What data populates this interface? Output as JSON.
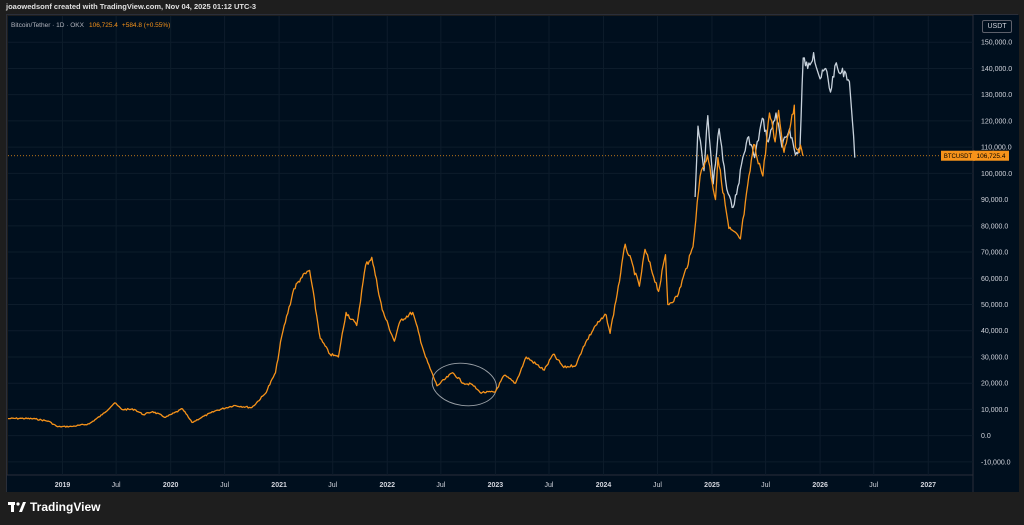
{
  "header": {
    "caption": "joaowedsonf created with TradingView.com, Nov 04, 2025 01:12 UTC-3"
  },
  "legend": {
    "symbol": "Bitcoin/Tether · 1D · OKX",
    "price": "106,725.4",
    "change": "+584.8 (+0.55%)"
  },
  "currency_badge": "USDT",
  "brand": {
    "name": "TradingView"
  },
  "colors": {
    "background": "#000f1e",
    "price_line": "#f7931a",
    "projection_line": "#c8d2dc",
    "grid": "#0d1c2b",
    "badge_bg": "#f7931a",
    "ellipse": "#9aa0a6"
  },
  "chart_data": {
    "type": "line",
    "title": "Bitcoin/Tether · 1D · OKX",
    "ylabel": "USDT",
    "y_scale": "linear",
    "ylim": [
      -15000,
      160000
    ],
    "xlim": [
      "2018-07-01",
      "2027-06-01"
    ],
    "x_tick_labels": [
      {
        "date": "2019-01-01",
        "label": "2019"
      },
      {
        "date": "2019-07-01",
        "label": "Jul"
      },
      {
        "date": "2020-01-01",
        "label": "2020"
      },
      {
        "date": "2020-07-01",
        "label": "Jul"
      },
      {
        "date": "2021-01-01",
        "label": "2021"
      },
      {
        "date": "2021-07-01",
        "label": "Jul"
      },
      {
        "date": "2022-01-01",
        "label": "2022"
      },
      {
        "date": "2022-07-01",
        "label": "Jul"
      },
      {
        "date": "2023-01-01",
        "label": "2023"
      },
      {
        "date": "2023-07-01",
        "label": "Jul"
      },
      {
        "date": "2024-01-01",
        "label": "2024"
      },
      {
        "date": "2024-07-01",
        "label": "Jul"
      },
      {
        "date": "2025-01-01",
        "label": "2025"
      },
      {
        "date": "2025-07-01",
        "label": "Jul"
      },
      {
        "date": "2026-01-01",
        "label": "2026"
      },
      {
        "date": "2026-07-01",
        "label": "Jul"
      },
      {
        "date": "2027-01-01",
        "label": "2027"
      }
    ],
    "y_ticks": [
      {
        "value": 150000,
        "label": "150,000.0"
      },
      {
        "value": 140000,
        "label": "140,000.0"
      },
      {
        "value": 130000,
        "label": "130,000.0"
      },
      {
        "value": 120000,
        "label": "120,000.0"
      },
      {
        "value": 110000,
        "label": "110,000.0"
      },
      {
        "value": 100000,
        "label": "100,000.0"
      },
      {
        "value": 90000,
        "label": "90,000.0"
      },
      {
        "value": 80000,
        "label": "80,000.0"
      },
      {
        "value": 70000,
        "label": "70,000.0"
      },
      {
        "value": 60000,
        "label": "60,000.0"
      },
      {
        "value": 50000,
        "label": "50,000.0"
      },
      {
        "value": 40000,
        "label": "40,000.0"
      },
      {
        "value": 30000,
        "label": "30,000.0"
      },
      {
        "value": 20000,
        "label": "20,000.0"
      },
      {
        "value": 10000,
        "label": "10,000.0"
      },
      {
        "value": 0,
        "label": "0.0"
      },
      {
        "value": -10000,
        "label": "-10,000.0"
      }
    ],
    "current_price": {
      "value": 106725.4,
      "label": "BTCUSDT",
      "price_label": "106,725.4"
    },
    "series": [
      {
        "name": "Bitcoin/Tether",
        "color": "#f7931a",
        "points": [
          [
            "2018-07-01",
            6500
          ],
          [
            "2018-08-15",
            6600
          ],
          [
            "2018-10-01",
            6400
          ],
          [
            "2018-11-15",
            5500
          ],
          [
            "2018-12-15",
            3400
          ],
          [
            "2019-02-01",
            3500
          ],
          [
            "2019-04-01",
            4500
          ],
          [
            "2019-05-15",
            8000
          ],
          [
            "2019-06-26",
            12500
          ],
          [
            "2019-07-20",
            10000
          ],
          [
            "2019-09-01",
            10000
          ],
          [
            "2019-10-01",
            8000
          ],
          [
            "2019-11-01",
            9200
          ],
          [
            "2019-12-15",
            7000
          ],
          [
            "2020-02-10",
            10200
          ],
          [
            "2020-03-13",
            5000
          ],
          [
            "2020-04-15",
            7000
          ],
          [
            "2020-06-01",
            9500
          ],
          [
            "2020-08-01",
            11500
          ],
          [
            "2020-10-01",
            10700
          ],
          [
            "2020-11-15",
            16000
          ],
          [
            "2020-12-20",
            24000
          ],
          [
            "2021-01-10",
            38000
          ],
          [
            "2021-02-20",
            56000
          ],
          [
            "2021-03-15",
            60000
          ],
          [
            "2021-04-14",
            63000
          ],
          [
            "2021-05-20",
            37000
          ],
          [
            "2021-06-22",
            31000
          ],
          [
            "2021-07-20",
            30000
          ],
          [
            "2021-08-15",
            47000
          ],
          [
            "2021-09-20",
            42000
          ],
          [
            "2021-10-20",
            65000
          ],
          [
            "2021-11-10",
            68000
          ],
          [
            "2021-12-15",
            48000
          ],
          [
            "2022-01-25",
            36000
          ],
          [
            "2022-02-15",
            44000
          ],
          [
            "2022-03-28",
            47000
          ],
          [
            "2022-05-10",
            30000
          ],
          [
            "2022-06-18",
            19000
          ],
          [
            "2022-08-10",
            24000
          ],
          [
            "2022-09-15",
            20000
          ],
          [
            "2022-10-15",
            19500
          ],
          [
            "2022-11-10",
            16500
          ],
          [
            "2022-12-31",
            16600
          ],
          [
            "2023-01-31",
            23000
          ],
          [
            "2023-03-10",
            20000
          ],
          [
            "2023-04-15",
            30000
          ],
          [
            "2023-06-15",
            25000
          ],
          [
            "2023-07-15",
            31000
          ],
          [
            "2023-08-20",
            26000
          ],
          [
            "2023-10-01",
            27000
          ],
          [
            "2023-10-25",
            34000
          ],
          [
            "2023-12-05",
            42000
          ],
          [
            "2024-01-10",
            46000
          ],
          [
            "2024-01-23",
            39000
          ],
          [
            "2024-02-28",
            62000
          ],
          [
            "2024-03-14",
            73000
          ],
          [
            "2024-05-01",
            57000
          ],
          [
            "2024-05-20",
            71000
          ],
          [
            "2024-07-05",
            55000
          ],
          [
            "2024-07-28",
            69000
          ],
          [
            "2024-08-05",
            50000
          ],
          [
            "2024-09-06",
            53000
          ],
          [
            "2024-10-29",
            72000
          ],
          [
            "2024-11-12",
            89000
          ],
          [
            "2024-11-22",
            99000
          ],
          [
            "2024-12-17",
            107000
          ],
          [
            "2025-01-13",
            90000
          ],
          [
            "2025-01-21",
            106000
          ],
          [
            "2025-02-27",
            79000
          ],
          [
            "2025-04-07",
            75000
          ],
          [
            "2025-05-22",
            111000
          ],
          [
            "2025-06-22",
            99000
          ],
          [
            "2025-07-14",
            123000
          ],
          [
            "2025-08-02",
            112000
          ],
          [
            "2025-08-14",
            124000
          ],
          [
            "2025-09-01",
            108000
          ],
          [
            "2025-10-06",
            126000
          ],
          [
            "2025-10-10",
            110000
          ],
          [
            "2025-10-31",
            109000
          ],
          [
            "2025-11-04",
            106725
          ]
        ]
      },
      {
        "name": "projection",
        "color": "#c8d2dc",
        "points": [
          [
            "2024-11-05",
            91000
          ],
          [
            "2024-11-15",
            118000
          ],
          [
            "2024-12-05",
            101000
          ],
          [
            "2024-12-18",
            122000
          ],
          [
            "2025-01-05",
            96000
          ],
          [
            "2025-01-25",
            117000
          ],
          [
            "2025-02-20",
            94000
          ],
          [
            "2025-03-10",
            87000
          ],
          [
            "2025-03-25",
            92000
          ],
          [
            "2025-04-15",
            106000
          ],
          [
            "2025-05-05",
            114000
          ],
          [
            "2025-05-25",
            106000
          ],
          [
            "2025-06-20",
            121000
          ],
          [
            "2025-07-10",
            112000
          ],
          [
            "2025-08-05",
            123000
          ],
          [
            "2025-08-25",
            110000
          ],
          [
            "2025-09-20",
            117000
          ],
          [
            "2025-10-10",
            107000
          ],
          [
            "2025-10-25",
            110000
          ],
          [
            "2025-11-05",
            144000
          ],
          [
            "2025-11-20",
            140000
          ],
          [
            "2025-12-10",
            146000
          ],
          [
            "2026-01-01",
            136000
          ],
          [
            "2026-01-20",
            140000
          ],
          [
            "2026-02-05",
            131000
          ],
          [
            "2026-02-20",
            141000
          ],
          [
            "2026-03-10",
            138000
          ],
          [
            "2026-03-25",
            139000
          ],
          [
            "2026-04-10",
            135000
          ],
          [
            "2026-04-20",
            120000
          ],
          [
            "2026-04-28",
            106000
          ]
        ]
      }
    ],
    "annotations": [
      {
        "type": "ellipse",
        "x_from": "2022-06-01",
        "x_to": "2023-01-05",
        "y_center": 19500,
        "y_radius": 8000
      }
    ]
  }
}
